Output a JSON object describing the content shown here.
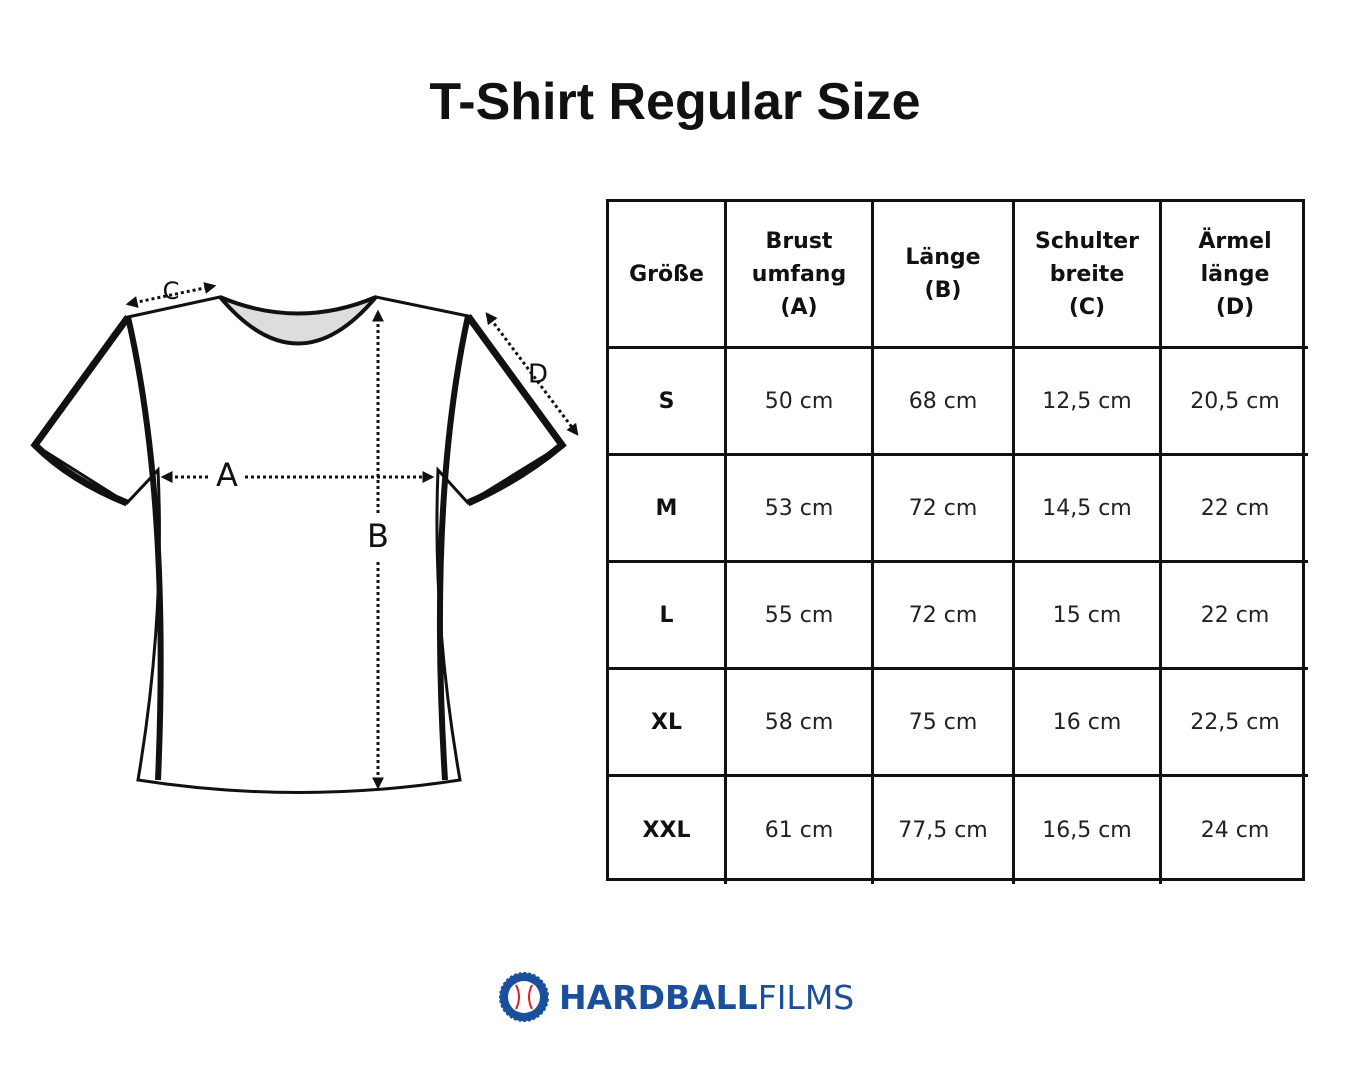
{
  "title": "T-Shirt Regular Size",
  "diagram": {
    "labels": [
      "A",
      "B",
      "C",
      "D"
    ]
  },
  "table": {
    "header": [
      [
        "Größe"
      ],
      [
        "Brust",
        "umfang",
        "(A)"
      ],
      [
        "Länge",
        "(B)"
      ],
      [
        "Schulter",
        "breite",
        "(C)"
      ],
      [
        "Ärmel",
        "länge",
        "(D)"
      ]
    ],
    "rows": [
      [
        "S",
        "50 cm",
        "68 cm",
        "12,5 cm",
        "20,5 cm"
      ],
      [
        "M",
        "53 cm",
        "72 cm",
        "14,5 cm",
        "22 cm"
      ],
      [
        "L",
        "55 cm",
        "72 cm",
        "15 cm",
        "22 cm"
      ],
      [
        "XL",
        "58 cm",
        "75 cm",
        "16 cm",
        "22,5 cm"
      ],
      [
        "XXL",
        "61 cm",
        "77,5 cm",
        "16,5 cm",
        "24 cm"
      ]
    ]
  },
  "logo": {
    "bold": "HARDBALL",
    "light": "FILMS"
  }
}
